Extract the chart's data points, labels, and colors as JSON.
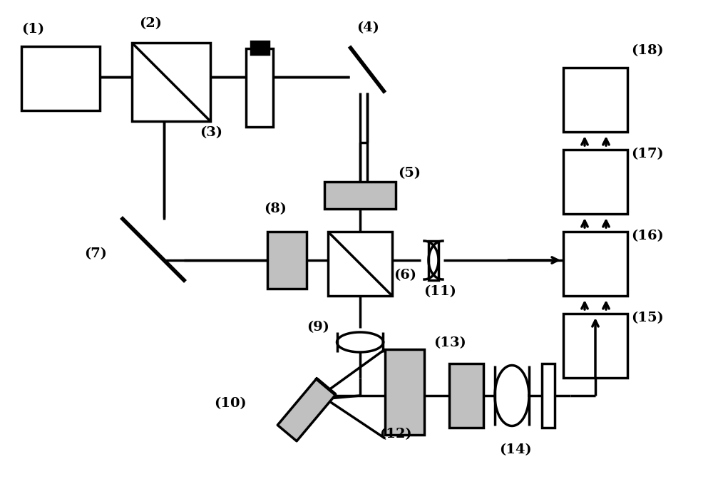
{
  "bg_color": "#ffffff",
  "lc": "#000000",
  "gc": "#c0c0c0",
  "lw": 2.5,
  "fig_w": 10.0,
  "fig_h": 6.93,
  "label_fs": 14
}
